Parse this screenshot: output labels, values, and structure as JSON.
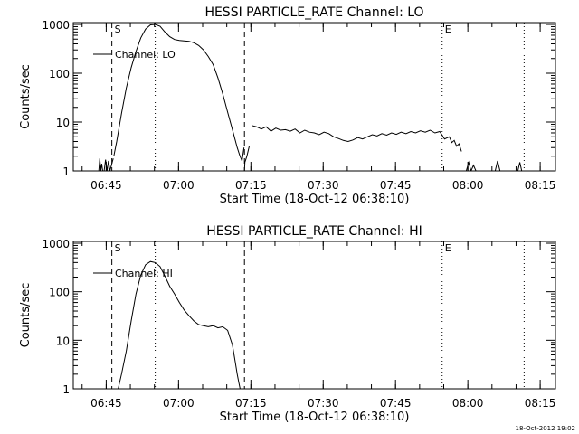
{
  "footer": {
    "timestamp": "18-Oct-2012 19:02"
  },
  "chart_data": [
    {
      "type": "line",
      "title": "HESSI PARTICLE_RATE Channel: LO",
      "xlabel": "Start Time (18-Oct-12 06:38:10)",
      "ylabel": "Counts/sec",
      "yscale": "log",
      "ylim": [
        1,
        1000
      ],
      "y_ticks": [
        "1",
        "10",
        "100",
        "1000"
      ],
      "x_unit": "minutes after 06:38:10",
      "xlim": [
        0,
        100
      ],
      "x_ticks": [
        {
          "value": 6.83,
          "label": "06:45"
        },
        {
          "value": 21.83,
          "label": "07:00"
        },
        {
          "value": 36.83,
          "label": "07:15"
        },
        {
          "value": 51.83,
          "label": "07:30"
        },
        {
          "value": 66.83,
          "label": "07:45"
        },
        {
          "value": 81.83,
          "label": "08:00"
        },
        {
          "value": 96.83,
          "label": "08:15"
        }
      ],
      "markers": [
        {
          "value": 8.0,
          "style": "dashed",
          "label": "S"
        },
        {
          "value": 17.0,
          "style": "dotted",
          "label": ""
        },
        {
          "value": 35.5,
          "style": "dashed",
          "label": ""
        },
        {
          "value": 76.5,
          "style": "dotted",
          "label": "E"
        },
        {
          "value": 93.5,
          "style": "dotted",
          "label": ""
        }
      ],
      "legend": "Channel: LO",
      "series": [
        {
          "name": "Channel: LO",
          "segments": [
            {
              "x": [
                5.3,
                5.5,
                5.7,
                5.9,
                6.1,
                6.4,
                6.7,
                7.0,
                7.3,
                7.6,
                8.0,
                8.3
              ],
              "y": [
                1,
                1.8,
                1,
                1.4,
                1,
                1,
                1.7,
                1,
                1.6,
                1,
                1.4,
                1.8
              ]
            },
            {
              "x": [
                8.4,
                9,
                10,
                11,
                12,
                13,
                14,
                15,
                16,
                17,
                18,
                19,
                20,
                21,
                22,
                23,
                24,
                25,
                26,
                27,
                28,
                29,
                30,
                31,
                32,
                33,
                34,
                34.5,
                35,
                35.4
              ],
              "y": [
                2,
                4,
                15,
                50,
                130,
                280,
                530,
                800,
                980,
                1000,
                920,
                700,
                560,
                490,
                470,
                460,
                450,
                420,
                370,
                300,
                220,
                150,
                80,
                38,
                16,
                7,
                3,
                2.1,
                1.6,
                3
              ]
            },
            {
              "x": [
                35.5,
                35.6,
                36,
                36.5
              ],
              "y": [
                1,
                1.5,
                2,
                3.2
              ]
            },
            {
              "x": [
                37.0,
                38,
                39,
                40,
                41,
                42,
                43,
                44,
                45,
                46,
                47,
                48,
                49,
                50,
                51,
                52,
                53,
                54,
                55,
                56,
                57,
                58,
                59,
                60,
                61,
                62,
                63,
                64,
                65,
                66,
                67,
                68,
                69,
                70,
                71,
                72,
                73,
                74,
                75,
                76,
                77,
                78,
                78.5,
                79,
                79.5,
                80,
                80.5
              ],
              "y": [
                8.5,
                8,
                7.2,
                8,
                6.5,
                7.5,
                6.8,
                7,
                6.5,
                7.2,
                6,
                6.8,
                6.2,
                6,
                5.5,
                6.2,
                5.8,
                5,
                4.6,
                4.2,
                4,
                4.3,
                4.8,
                4.5,
                5,
                5.5,
                5.2,
                5.8,
                5.4,
                6,
                5.6,
                6.2,
                5.8,
                6.4,
                6,
                6.6,
                6.2,
                6.8,
                6,
                6.4,
                4.5,
                5,
                3.8,
                4.2,
                3.2,
                3.6,
                2.5
              ]
            },
            {
              "x": [
                81.5,
                82,
                82.5,
                83,
                83.5
              ],
              "y": [
                1,
                1.5,
                1,
                1.3,
                1
              ]
            },
            {
              "x": [
                87.5,
                88,
                88.5
              ],
              "y": [
                1,
                1.6,
                1
              ]
            },
            {
              "x": [
                92.2,
                92.6,
                93
              ],
              "y": [
                1,
                1.5,
                1
              ]
            }
          ]
        }
      ]
    },
    {
      "type": "line",
      "title": "HESSI PARTICLE_RATE Channel: HI",
      "xlabel": "Start Time (18-Oct-12 06:38:10)",
      "ylabel": "Counts/sec",
      "yscale": "log",
      "ylim": [
        1,
        1000
      ],
      "y_ticks": [
        "1",
        "10",
        "100",
        "1000"
      ],
      "x_unit": "minutes after 06:38:10",
      "xlim": [
        0,
        100
      ],
      "x_ticks": [
        {
          "value": 6.83,
          "label": "06:45"
        },
        {
          "value": 21.83,
          "label": "07:00"
        },
        {
          "value": 36.83,
          "label": "07:15"
        },
        {
          "value": 51.83,
          "label": "07:30"
        },
        {
          "value": 66.83,
          "label": "07:45"
        },
        {
          "value": 81.83,
          "label": "08:00"
        },
        {
          "value": 96.83,
          "label": "08:15"
        }
      ],
      "markers": [
        {
          "value": 8.0,
          "style": "dashed",
          "label": "S"
        },
        {
          "value": 17.0,
          "style": "dotted",
          "label": ""
        },
        {
          "value": 35.5,
          "style": "dashed",
          "label": ""
        },
        {
          "value": 76.5,
          "style": "dotted",
          "label": "E"
        },
        {
          "value": 93.5,
          "style": "dotted",
          "label": ""
        }
      ],
      "legend": "Channel: HI",
      "series": [
        {
          "name": "Channel: HI",
          "segments": [
            {
              "x": [
                9.3,
                10,
                11,
                12,
                13,
                14,
                15,
                16,
                17,
                18,
                19,
                20,
                21,
                22,
                23,
                24,
                25,
                26,
                27,
                28,
                29,
                30,
                31,
                32,
                33,
                33.5,
                34,
                34.3,
                34.6
              ],
              "y": [
                1,
                2,
                6,
                25,
                90,
                220,
                360,
                420,
                400,
                330,
                210,
                130,
                90,
                60,
                42,
                32,
                25,
                21,
                20,
                19,
                20,
                18,
                19,
                16,
                8,
                4,
                2,
                1.4,
                1
              ]
            }
          ]
        }
      ]
    }
  ]
}
